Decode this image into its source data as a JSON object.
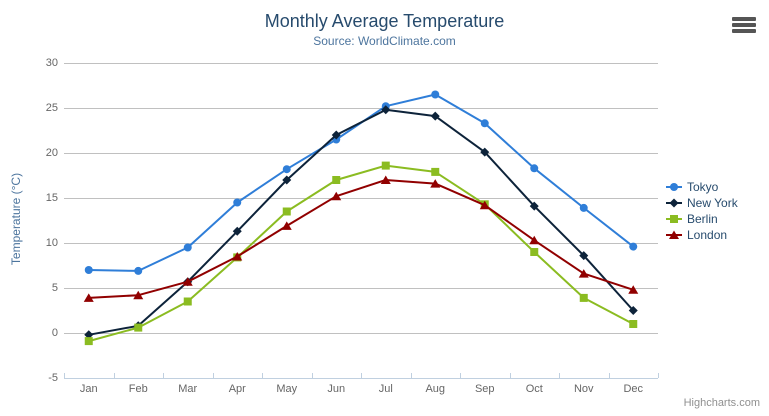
{
  "toolbar": {
    "context_menu_icon": "hamburger-menu-icon"
  },
  "chart_data": {
    "type": "line",
    "title": "Monthly Average Temperature",
    "subtitle": "Source: WorldClimate.com",
    "credits": "Highcharts.com",
    "categories": [
      "Jan",
      "Feb",
      "Mar",
      "Apr",
      "May",
      "Jun",
      "Jul",
      "Aug",
      "Sep",
      "Oct",
      "Nov",
      "Dec"
    ],
    "xlabel": "",
    "ylabel": "Temperature (°C)",
    "ylim": [
      -5,
      30
    ],
    "yticks": [
      30,
      25,
      20,
      15,
      10,
      5,
      0,
      -5
    ],
    "grid": true,
    "legend_position": "right",
    "series": [
      {
        "name": "Tokyo",
        "color": "#2f7ed8",
        "marker": "circle",
        "values": [
          7.0,
          6.9,
          9.5,
          14.5,
          18.2,
          21.5,
          25.2,
          26.5,
          23.3,
          18.3,
          13.9,
          9.6
        ]
      },
      {
        "name": "New York",
        "color": "#0d233a",
        "marker": "diamond",
        "values": [
          -0.2,
          0.8,
          5.7,
          11.3,
          17.0,
          22.0,
          24.8,
          24.1,
          20.1,
          14.1,
          8.6,
          2.5
        ]
      },
      {
        "name": "Berlin",
        "color": "#8bbc21",
        "marker": "square",
        "values": [
          -0.9,
          0.6,
          3.5,
          8.4,
          13.5,
          17.0,
          18.6,
          17.9,
          14.3,
          9.0,
          3.9,
          1.0
        ]
      },
      {
        "name": "London",
        "color": "#910000",
        "marker": "triangle",
        "values": [
          3.9,
          4.2,
          5.7,
          8.5,
          11.9,
          15.2,
          17.0,
          16.6,
          14.2,
          10.3,
          6.6,
          4.8
        ]
      }
    ],
    "colors": {
      "grid_line": "#c0c0c0",
      "axis_line": "#c0d0e0",
      "title_text": "#274b6d",
      "subtitle_text": "#4d759e",
      "axis_label_text": "#666666",
      "legend_text": "#274b6d",
      "credits_text": "#909090"
    }
  }
}
